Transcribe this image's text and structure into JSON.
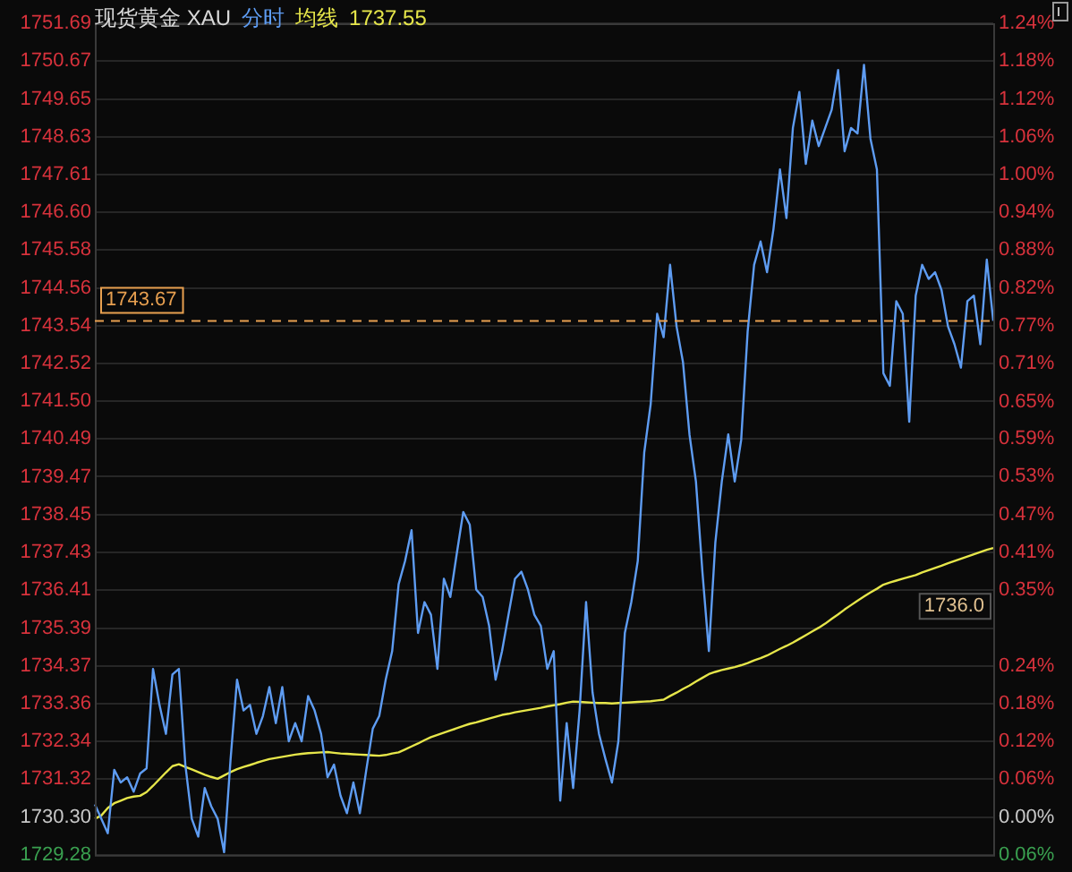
{
  "chart_data": {
    "type": "line",
    "title": "现货黄金 XAU",
    "annotations": [
      "1737.55",
      {
        "text": "1736.0",
        "y": 1736.0
      }
    ],
    "categories": [
      null,
      null,
      null,
      null,
      null,
      null,
      null,
      null,
      null,
      null,
      null,
      null,
      null,
      null,
      null,
      null,
      null,
      null,
      null,
      null,
      null,
      null,
      null,
      null,
      null,
      null,
      null,
      null,
      null,
      null,
      null,
      null,
      null,
      null,
      null,
      null,
      null,
      null,
      null,
      null,
      null,
      null,
      null,
      null,
      null,
      null,
      null,
      null,
      null,
      null,
      null,
      null,
      null,
      null,
      null,
      null,
      null,
      null,
      null,
      null,
      null,
      null,
      null,
      null,
      null,
      null,
      null,
      null,
      null,
      null,
      null,
      null,
      null,
      null,
      null,
      null,
      null,
      null,
      null,
      null,
      null,
      null,
      null,
      null,
      null,
      null,
      null,
      null,
      null,
      null,
      null,
      null,
      null,
      null,
      null,
      null,
      null,
      null,
      null,
      null,
      null,
      null,
      null,
      null,
      null,
      null,
      null,
      null,
      null,
      null,
      null,
      null,
      null,
      null,
      null,
      null,
      null,
      null,
      null,
      null,
      null,
      null,
      null,
      null,
      null,
      null,
      null,
      null,
      null,
      null,
      null,
      null,
      null,
      null,
      null,
      null,
      null,
      null,
      null,
      null
    ],
    "series": [
      {
        "name": "分时",
        "type": "line",
        "color": "#5e9cf2",
        "values": [
          1730.64,
          1730.25,
          1729.86,
          1731.57,
          1731.23,
          1731.37,
          1730.98,
          1731.47,
          1731.61,
          1734.29,
          1733.32,
          1732.54,
          1734.14,
          1734.29,
          1731.71,
          1730.25,
          1729.77,
          1731.08,
          1730.59,
          1730.25,
          1729.35,
          1731.86,
          1734.0,
          1733.17,
          1733.32,
          1732.54,
          1733.02,
          1733.8,
          1732.83,
          1733.8,
          1732.34,
          1732.83,
          1732.34,
          1733.56,
          1733.17,
          1732.54,
          1731.37,
          1731.71,
          1730.88,
          1730.4,
          1731.23,
          1730.4,
          1731.57,
          1732.68,
          1733.02,
          1734.0,
          1734.77,
          1736.57,
          1737.2,
          1738.03,
          1735.26,
          1736.09,
          1735.75,
          1734.29,
          1736.72,
          1736.23,
          1737.4,
          1738.52,
          1738.18,
          1736.43,
          1736.23,
          1735.45,
          1734.0,
          1734.77,
          1735.75,
          1736.72,
          1736.91,
          1736.43,
          1735.75,
          1735.45,
          1734.29,
          1734.77,
          1730.74,
          1732.83,
          1731.08,
          1733.17,
          1736.09,
          1733.66,
          1732.54,
          1731.86,
          1731.23,
          1732.34,
          1735.26,
          1736.09,
          1737.2,
          1740.12,
          1741.43,
          1743.86,
          1743.23,
          1745.18,
          1743.52,
          1742.55,
          1740.61,
          1739.34,
          1736.91,
          1734.77,
          1737.69,
          1739.34,
          1740.61,
          1739.34,
          1740.46,
          1743.38,
          1745.18,
          1745.81,
          1744.98,
          1746.15,
          1747.75,
          1746.44,
          1748.87,
          1749.84,
          1747.9,
          1749.07,
          1748.38,
          1748.87,
          1749.36,
          1750.43,
          1748.24,
          1748.87,
          1748.72,
          1750.57,
          1748.58,
          1747.75,
          1742.26,
          1741.92,
          1744.2,
          1743.86,
          1740.95,
          1744.35,
          1745.18,
          1744.8,
          1744.98,
          1744.5,
          1743.52,
          1743.04,
          1742.41,
          1744.2,
          1744.35,
          1743.04,
          1745.32,
          1743.67
        ]
      },
      {
        "name": "均线",
        "type": "line",
        "color": "#e6e64a",
        "values": [
          1730.25,
          1730.34,
          1730.54,
          1730.67,
          1730.74,
          1730.81,
          1730.85,
          1730.87,
          1730.97,
          1731.14,
          1731.32,
          1731.5,
          1731.67,
          1731.72,
          1731.65,
          1731.58,
          1731.51,
          1731.44,
          1731.38,
          1731.33,
          1731.42,
          1731.51,
          1731.59,
          1731.65,
          1731.7,
          1731.76,
          1731.81,
          1731.86,
          1731.89,
          1731.92,
          1731.95,
          1731.98,
          1732.0,
          1732.02,
          1732.03,
          1732.04,
          1732.05,
          1732.03,
          1732.01,
          1732.0,
          1731.99,
          1731.98,
          1731.97,
          1731.96,
          1731.95,
          1731.97,
          1732.01,
          1732.04,
          1732.12,
          1732.2,
          1732.28,
          1732.37,
          1732.45,
          1732.51,
          1732.57,
          1732.63,
          1732.69,
          1732.75,
          1732.81,
          1732.85,
          1732.9,
          1732.95,
          1733.0,
          1733.05,
          1733.08,
          1733.12,
          1733.15,
          1733.18,
          1733.21,
          1733.24,
          1733.28,
          1733.31,
          1733.34,
          1733.38,
          1733.41,
          1733.4,
          1733.39,
          1733.38,
          1733.37,
          1733.37,
          1733.36,
          1733.37,
          1733.38,
          1733.39,
          1733.4,
          1733.41,
          1733.42,
          1733.44,
          1733.46,
          1733.56,
          1733.65,
          1733.75,
          1733.84,
          1733.95,
          1734.05,
          1734.15,
          1734.21,
          1734.26,
          1734.3,
          1734.34,
          1734.39,
          1734.45,
          1734.52,
          1734.58,
          1734.65,
          1734.74,
          1734.83,
          1734.91,
          1735.0,
          1735.1,
          1735.2,
          1735.3,
          1735.4,
          1735.51,
          1735.64,
          1735.76,
          1735.89,
          1736.01,
          1736.13,
          1736.24,
          1736.35,
          1736.45,
          1736.56,
          1736.62,
          1736.67,
          1736.72,
          1736.77,
          1736.82,
          1736.89,
          1736.95,
          1737.01,
          1737.07,
          1737.14,
          1737.2,
          1737.26,
          1737.32,
          1737.38,
          1737.44,
          1737.5,
          1737.55
        ]
      }
    ],
    "ylim": [
      1729.28,
      1751.69
    ],
    "yticks": [
      1729.28,
      {
        "value": 1730.3,
        "label": "1730.30"
      },
      1731.32,
      1732.34,
      1733.36,
      1734.37,
      1735.39,
      1736.41,
      1737.43,
      1738.45,
      1739.47,
      1740.49,
      {
        "value": 1741.5,
        "label": "1741.50"
      },
      1742.52,
      1743.54,
      1744.56,
      1745.58,
      {
        "value": 1746.6,
        "label": "1746.60"
      },
      1747.61,
      1748.63,
      1749.65,
      1750.67,
      1751.69
    ],
    "y2lim": [
      -0.059,
      1.236
    ],
    "y2ticks": [
      {
        "value": -0.059,
        "label": "0.06%"
      },
      {
        "value": 0,
        "label": "0.00%"
      },
      {
        "value": 0.059,
        "label": "0.06%"
      },
      {
        "value": 0.118,
        "label": "0.12%"
      },
      {
        "value": 0.177,
        "label": "0.18%"
      },
      {
        "value": 0.235,
        "label": "0.24%"
      },
      {
        "value": 0.294,
        "label": null
      },
      {
        "value": 0.353,
        "label": "0.35%"
      },
      {
        "value": 0.412,
        "label": "0.41%"
      },
      {
        "value": 0.471,
        "label": "0.47%"
      },
      {
        "value": 0.53,
        "label": "0.53%"
      },
      {
        "value": 0.589,
        "label": "0.59%"
      },
      {
        "value": 0.647,
        "label": "0.65%"
      },
      {
        "value": 0.706,
        "label": "0.71%"
      },
      {
        "value": 0.765,
        "label": "0.77%"
      },
      {
        "value": 0.824,
        "label": "0.82%"
      },
      {
        "value": 0.883,
        "label": "0.88%"
      },
      {
        "value": 0.942,
        "label": "0.94%"
      },
      {
        "value": 1.0,
        "label": "1.00%"
      },
      {
        "value": 1.059,
        "label": "1.06%"
      },
      {
        "value": 1.118,
        "label": "1.12%"
      },
      {
        "value": 1.177,
        "label": "1.18%"
      },
      {
        "value": 1.236,
        "label": "1.24%"
      }
    ],
    "ref_lines": [
      {
        "axis": "y",
        "value": 1743.67,
        "label": "1743.67",
        "color": "#e8a050",
        "line_style": "dashed"
      }
    ],
    "grid": "y",
    "tick_labels": "y",
    "marker": "none",
    "line_style": "solid"
  }
}
